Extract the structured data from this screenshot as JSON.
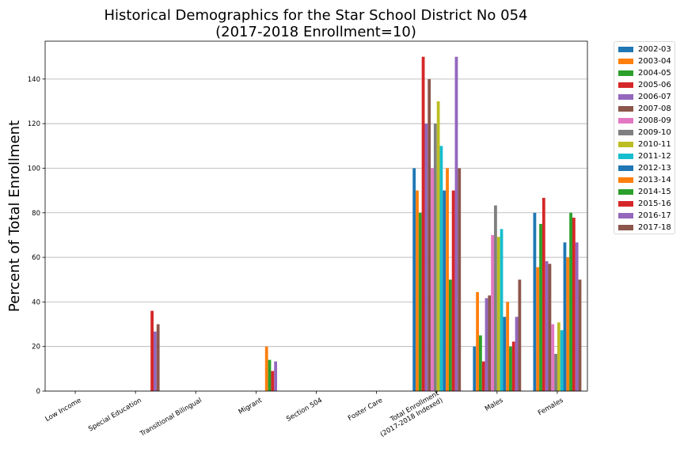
{
  "chart_data": {
    "type": "bar",
    "title": "Historical Demographics for the Star School District No 054",
    "subtitle": "(2017-2018 Enrollment=10)",
    "xlabel": "",
    "ylabel": "Percent of Total Enrollment",
    "ylim": [
      0,
      157
    ],
    "yticks": [
      0,
      20,
      40,
      60,
      80,
      100,
      120,
      140
    ],
    "grid": "horizontal",
    "legend_position": "outside-right",
    "categories": [
      "Low Income",
      "Special Education",
      "Transitional Bilingual",
      "Migrant",
      "Section 504",
      "Foster Care",
      "Total Enrollment\n(2017-2018 Indexed)",
      "Males",
      "Females"
    ],
    "series": [
      {
        "name": "2002-03",
        "color": "#1f77b4",
        "values": [
          0,
          0,
          0,
          0,
          0,
          0,
          100,
          20,
          80
        ]
      },
      {
        "name": "2003-04",
        "color": "#ff7f0e",
        "values": [
          0,
          0,
          0,
          0,
          0,
          0,
          90,
          44.4,
          55.6
        ]
      },
      {
        "name": "2004-05",
        "color": "#2ca02c",
        "values": [
          0,
          0,
          0,
          0,
          0,
          0,
          80,
          25,
          75
        ]
      },
      {
        "name": "2005-06",
        "color": "#d62728",
        "values": [
          0,
          0,
          0,
          0,
          0,
          0,
          150,
          13.3,
          86.7
        ]
      },
      {
        "name": "2006-07",
        "color": "#9467bd",
        "values": [
          0,
          0,
          0,
          0,
          0,
          0,
          120,
          41.7,
          58.3
        ]
      },
      {
        "name": "2007-08",
        "color": "#8c564b",
        "values": [
          0,
          0,
          0,
          0,
          0,
          0,
          140,
          42.9,
          57.1
        ]
      },
      {
        "name": "2008-09",
        "color": "#e377c2",
        "values": [
          0,
          0,
          0,
          0,
          0,
          0,
          100,
          70,
          30
        ]
      },
      {
        "name": "2009-10",
        "color": "#7f7f7f",
        "values": [
          0,
          0,
          0,
          0,
          0,
          0,
          120,
          83.3,
          16.7
        ]
      },
      {
        "name": "2010-11",
        "color": "#bcbd22",
        "values": [
          0,
          0,
          0,
          0,
          0,
          0,
          130,
          69.2,
          30.8
        ]
      },
      {
        "name": "2011-12",
        "color": "#17becf",
        "values": [
          0,
          0,
          0,
          0,
          0,
          0,
          110,
          72.7,
          27.3
        ]
      },
      {
        "name": "2012-13",
        "color": "#1f77b4",
        "values": [
          0,
          0,
          0,
          0,
          0,
          0,
          90,
          33.3,
          66.7
        ]
      },
      {
        "name": "2013-14",
        "color": "#ff7f0e",
        "values": [
          0,
          0,
          0,
          20,
          0,
          0,
          100,
          40,
          60
        ]
      },
      {
        "name": "2014-15",
        "color": "#2ca02c",
        "values": [
          0,
          0,
          0,
          14,
          0,
          0,
          50,
          20,
          80
        ]
      },
      {
        "name": "2015-16",
        "color": "#d62728",
        "values": [
          0,
          36,
          0,
          9,
          0,
          0,
          90,
          22.2,
          77.8
        ]
      },
      {
        "name": "2016-17",
        "color": "#9467bd",
        "values": [
          0,
          26.7,
          0,
          13.3,
          0,
          0,
          150,
          33.3,
          66.7
        ]
      },
      {
        "name": "2017-18",
        "color": "#8c564b",
        "values": [
          0,
          30,
          0,
          0,
          0,
          0,
          100,
          50,
          50
        ]
      }
    ]
  }
}
